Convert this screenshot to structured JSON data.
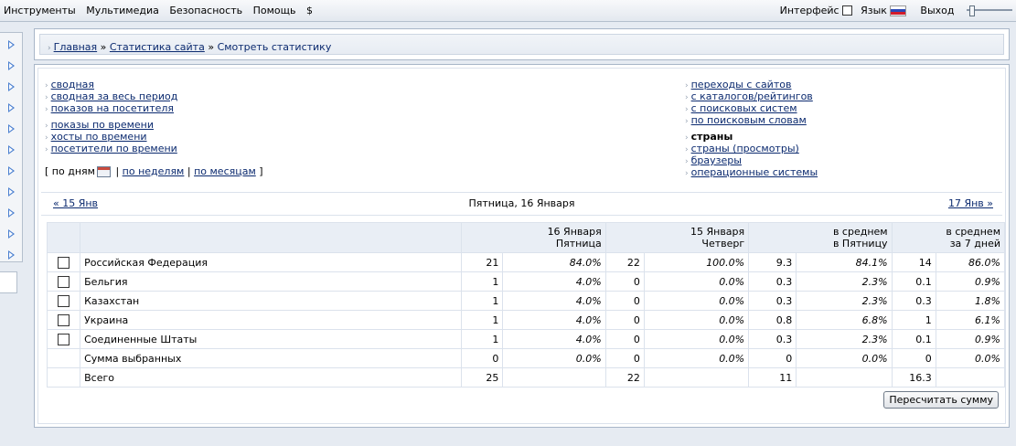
{
  "menu": [
    "Инструменты",
    "Мультимедиа",
    "Безопасность",
    "Помощь",
    "$"
  ],
  "topright": {
    "interface": "Интерфейс",
    "language": "Язык",
    "exit": "Выход"
  },
  "colors": {
    "accent": "#0b2a6f",
    "panel_border": "#a8b6c8",
    "header_bg": "#e9eef5",
    "arrow": "#4a7fd0"
  },
  "sidebar": {
    "items": 11,
    "icon": "expand-arrow-icon",
    "tab_label": ""
  },
  "breadcrumb": {
    "home": "Главная",
    "stats": "Статистика сайта",
    "current": "Смотреть статистику"
  },
  "links_left": {
    "group1": [
      "сводная",
      "сводная за весь период",
      "показов на посетителя"
    ],
    "group2": [
      "показы по времени",
      "хосты по времени",
      "посетители по времени"
    ]
  },
  "period": {
    "open": "[",
    "by_days": "по дням",
    "by_weeks": "по неделям",
    "by_months": "по месяцам",
    "close": "]",
    "sep": "|"
  },
  "links_right": {
    "group1": [
      "переходы с сайтов",
      "с каталогов/рейтингов",
      "с поисковых систем",
      "по поисковым словам"
    ],
    "current": "страны",
    "group2": [
      "страны (просмотры)",
      "браузеры",
      "операционные системы"
    ]
  },
  "datenav": {
    "prev": "« 15 Янв",
    "title": "Пятница, 16 Января",
    "next": "17 Янв »"
  },
  "table": {
    "headers": [
      [
        "16 Января",
        "Пятница"
      ],
      [
        "15 Января",
        "Четверг"
      ],
      [
        "в среднем",
        "в Пятницу"
      ],
      [
        "в среднем",
        "за 7 дней"
      ]
    ],
    "rows": [
      {
        "name": "Российская Федерация",
        "c": [
          "21",
          "84.0%",
          "22",
          "100.0%",
          "9.3",
          "84.1%",
          "14",
          "86.0%"
        ]
      },
      {
        "name": "Бельгия",
        "c": [
          "1",
          "4.0%",
          "0",
          "0.0%",
          "0.3",
          "2.3%",
          "0.1",
          "0.9%"
        ]
      },
      {
        "name": "Казахстан",
        "c": [
          "1",
          "4.0%",
          "0",
          "0.0%",
          "0.3",
          "2.3%",
          "0.3",
          "1.8%"
        ]
      },
      {
        "name": "Украина",
        "c": [
          "1",
          "4.0%",
          "0",
          "0.0%",
          "0.8",
          "6.8%",
          "1",
          "6.1%"
        ]
      },
      {
        "name": "Соединенные Штаты",
        "c": [
          "1",
          "4.0%",
          "0",
          "0.0%",
          "0.3",
          "2.3%",
          "0.1",
          "0.9%"
        ]
      }
    ],
    "sum_row": {
      "name": "Сумма выбранных",
      "c": [
        "0",
        "0.0%",
        "0",
        "0.0%",
        "0",
        "0.0%",
        "0",
        "0.0%"
      ]
    },
    "total_row": {
      "name": "Всего",
      "c": [
        "25",
        "",
        "22",
        "",
        "11",
        "",
        "16.3",
        ""
      ]
    }
  },
  "recalc_button": "Пересчитать сумму"
}
